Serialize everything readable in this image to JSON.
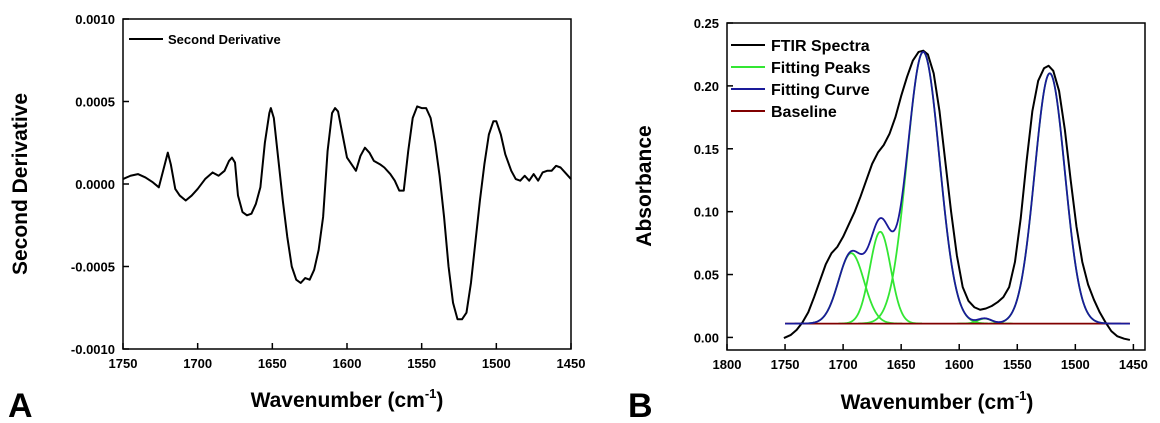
{
  "chart_data": [
    {
      "panel": "A",
      "type": "line",
      "xlabel": "Wavenumber (cm",
      "xlabel_sup": "-1",
      "xlabel_close": ")",
      "ylabel": "Second Derivative",
      "xlim": [
        1750,
        1450
      ],
      "ylim": [
        -0.001,
        0.001
      ],
      "x_ticks": [
        1750,
        1700,
        1650,
        1600,
        1550,
        1500,
        1450
      ],
      "y_ticks": [
        {
          "value": -0.001,
          "label": "-0.0010"
        },
        {
          "value": -0.0005,
          "label": "-0.0005"
        },
        {
          "value": 0.0,
          "label": "0.0000"
        },
        {
          "value": 0.0005,
          "label": "0.0005"
        },
        {
          "value": 0.001,
          "label": "0.0010"
        }
      ],
      "legend_position": "top-left",
      "series": [
        {
          "name": "Second Derivative",
          "color": "#000000",
          "points": [
            [
              1750,
              3e-05
            ],
            [
              1745,
              5e-05
            ],
            [
              1740,
              6e-05
            ],
            [
              1735,
              4e-05
            ],
            [
              1730,
              1e-05
            ],
            [
              1726,
              -2e-05
            ],
            [
              1722,
              0.00012
            ],
            [
              1720,
              0.00019
            ],
            [
              1718,
              0.00012
            ],
            [
              1715,
              -3e-05
            ],
            [
              1712,
              -7e-05
            ],
            [
              1708,
              -0.0001
            ],
            [
              1704,
              -7e-05
            ],
            [
              1700,
              -3e-05
            ],
            [
              1695,
              3e-05
            ],
            [
              1690,
              7e-05
            ],
            [
              1686,
              5e-05
            ],
            [
              1682,
              8e-05
            ],
            [
              1679,
              0.00014
            ],
            [
              1677,
              0.00016
            ],
            [
              1675,
              0.00013
            ],
            [
              1673,
              -7e-05
            ],
            [
              1670,
              -0.00017
            ],
            [
              1667,
              -0.00019
            ],
            [
              1664,
              -0.00018
            ],
            [
              1661,
              -0.00012
            ],
            [
              1658,
              -2e-05
            ],
            [
              1655,
              0.00025
            ],
            [
              1652,
              0.00043
            ],
            [
              1651,
              0.00046
            ],
            [
              1649,
              0.0004
            ],
            [
              1646,
              0.00015
            ],
            [
              1643,
              -0.0001
            ],
            [
              1640,
              -0.00032
            ],
            [
              1637,
              -0.0005
            ],
            [
              1634,
              -0.00058
            ],
            [
              1631,
              -0.0006
            ],
            [
              1628,
              -0.00057
            ],
            [
              1625,
              -0.00058
            ],
            [
              1622,
              -0.00052
            ],
            [
              1619,
              -0.0004
            ],
            [
              1616,
              -0.0002
            ],
            [
              1613,
              0.0002
            ],
            [
              1610,
              0.00043
            ],
            [
              1608,
              0.00046
            ],
            [
              1606,
              0.00044
            ],
            [
              1603,
              0.0003
            ],
            [
              1600,
              0.00016
            ],
            [
              1597,
              0.00012
            ],
            [
              1594,
              8e-05
            ],
            [
              1591,
              0.00017
            ],
            [
              1588,
              0.00022
            ],
            [
              1585,
              0.00019
            ],
            [
              1582,
              0.00014
            ],
            [
              1578,
              0.00012
            ],
            [
              1575,
              0.0001
            ],
            [
              1571,
              6e-05
            ],
            [
              1568,
              2e-05
            ],
            [
              1565,
              -4e-05
            ],
            [
              1562,
              -4e-05
            ],
            [
              1559,
              0.0002
            ],
            [
              1556,
              0.0004
            ],
            [
              1553,
              0.00047
            ],
            [
              1550,
              0.00046
            ],
            [
              1547,
              0.00046
            ],
            [
              1544,
              0.0004
            ],
            [
              1541,
              0.00025
            ],
            [
              1538,
              5e-05
            ],
            [
              1535,
              -0.0002
            ],
            [
              1532,
              -0.0005
            ],
            [
              1529,
              -0.00072
            ],
            [
              1526,
              -0.00082
            ],
            [
              1523,
              -0.00082
            ],
            [
              1520,
              -0.00078
            ],
            [
              1517,
              -0.0006
            ],
            [
              1514,
              -0.00035
            ],
            [
              1511,
              -0.0001
            ],
            [
              1508,
              0.00012
            ],
            [
              1505,
              0.0003
            ],
            [
              1502,
              0.00038
            ],
            [
              1500,
              0.00038
            ],
            [
              1497,
              0.0003
            ],
            [
              1494,
              0.00018
            ],
            [
              1490,
              8e-05
            ],
            [
              1487,
              3e-05
            ],
            [
              1484,
              2e-05
            ],
            [
              1481,
              5e-05
            ],
            [
              1478,
              2e-05
            ],
            [
              1475,
              6e-05
            ],
            [
              1472,
              2e-05
            ],
            [
              1469,
              7e-05
            ],
            [
              1466,
              8e-05
            ],
            [
              1463,
              8e-05
            ],
            [
              1460,
              0.00011
            ],
            [
              1457,
              0.0001
            ],
            [
              1454,
              7e-05
            ],
            [
              1450,
              3e-05
            ]
          ]
        }
      ]
    },
    {
      "panel": "B",
      "type": "line",
      "xlabel": "Wavenumber (cm",
      "xlabel_sup": "-1",
      "xlabel_close": ")",
      "ylabel": "Absorbance",
      "xlim": [
        1800,
        1440
      ],
      "ylim": [
        -0.01,
        0.25
      ],
      "x_ticks": [
        1800,
        1750,
        1700,
        1650,
        1600,
        1550,
        1500,
        1450
      ],
      "y_ticks": [
        {
          "value": 0.0,
          "label": "0.00"
        },
        {
          "value": 0.05,
          "label": "0.05"
        },
        {
          "value": 0.1,
          "label": "0.10"
        },
        {
          "value": 0.15,
          "label": "0.15"
        },
        {
          "value": 0.2,
          "label": "0.20"
        },
        {
          "value": 0.25,
          "label": "0.25"
        }
      ],
      "legend_position": "top-left",
      "series": [
        {
          "name": "FTIR Spectra",
          "color": "#000000"
        },
        {
          "name": "Fitting Peaks",
          "color": "#33e633"
        },
        {
          "name": "Fitting Curve",
          "color": "#1a1a99"
        },
        {
          "name": "Baseline",
          "color": "#800000"
        }
      ],
      "baseline": {
        "y": 0.011,
        "x_range": [
          1750,
          1453
        ]
      },
      "fitting_peaks": [
        {
          "center": 1693,
          "amplitude": 0.056,
          "sigma": 11
        },
        {
          "center": 1668,
          "amplitude": 0.073,
          "sigma": 9
        },
        {
          "center": 1631,
          "amplitude": 0.216,
          "sigma": 14
        },
        {
          "center": 1578,
          "amplitude": 0.004,
          "sigma": 6
        },
        {
          "center": 1522,
          "amplitude": 0.199,
          "sigma": 13
        }
      ],
      "ftir_points": [
        [
          1751,
          -0.0005
        ],
        [
          1745,
          0.002
        ],
        [
          1740,
          0.006
        ],
        [
          1735,
          0.012
        ],
        [
          1730,
          0.02
        ],
        [
          1725,
          0.032
        ],
        [
          1720,
          0.045
        ],
        [
          1715,
          0.058
        ],
        [
          1710,
          0.067
        ],
        [
          1705,
          0.072
        ],
        [
          1700,
          0.08
        ],
        [
          1695,
          0.09
        ],
        [
          1690,
          0.1
        ],
        [
          1685,
          0.112
        ],
        [
          1680,
          0.125
        ],
        [
          1675,
          0.138
        ],
        [
          1670,
          0.147
        ],
        [
          1665,
          0.153
        ],
        [
          1660,
          0.162
        ],
        [
          1655,
          0.175
        ],
        [
          1650,
          0.192
        ],
        [
          1645,
          0.207
        ],
        [
          1640,
          0.22
        ],
        [
          1635,
          0.227
        ],
        [
          1631,
          0.228
        ],
        [
          1627,
          0.225
        ],
        [
          1622,
          0.21
        ],
        [
          1617,
          0.18
        ],
        [
          1612,
          0.14
        ],
        [
          1607,
          0.1
        ],
        [
          1602,
          0.065
        ],
        [
          1597,
          0.04
        ],
        [
          1592,
          0.029
        ],
        [
          1587,
          0.024
        ],
        [
          1582,
          0.022
        ],
        [
          1577,
          0.023
        ],
        [
          1572,
          0.025
        ],
        [
          1567,
          0.028
        ],
        [
          1562,
          0.032
        ],
        [
          1557,
          0.04
        ],
        [
          1552,
          0.06
        ],
        [
          1547,
          0.095
        ],
        [
          1542,
          0.14
        ],
        [
          1537,
          0.18
        ],
        [
          1532,
          0.204
        ],
        [
          1527,
          0.214
        ],
        [
          1523,
          0.216
        ],
        [
          1519,
          0.212
        ],
        [
          1514,
          0.196
        ],
        [
          1509,
          0.165
        ],
        [
          1504,
          0.125
        ],
        [
          1499,
          0.088
        ],
        [
          1494,
          0.06
        ],
        [
          1489,
          0.042
        ],
        [
          1484,
          0.03
        ],
        [
          1479,
          0.02
        ],
        [
          1474,
          0.012
        ],
        [
          1469,
          0.005
        ],
        [
          1464,
          0.001
        ],
        [
          1458,
          -0.001
        ],
        [
          1453,
          -0.002
        ]
      ]
    }
  ],
  "panel_labels": {
    "a": "A",
    "b": "B"
  }
}
